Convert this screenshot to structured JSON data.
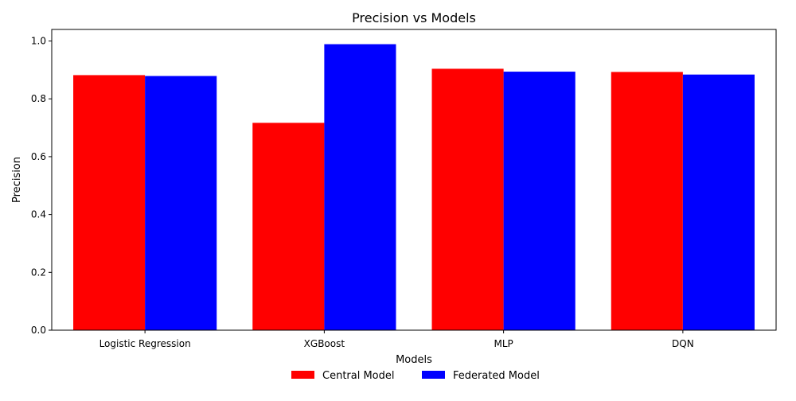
{
  "chart_data": {
    "type": "bar",
    "title": "Precision vs Models",
    "xlabel": "Models",
    "ylabel": "Precision",
    "categories": [
      "Logistic Regression",
      "XGBoost",
      "MLP",
      "DQN"
    ],
    "series": [
      {
        "name": "Central Model",
        "color": "#ff0000",
        "values": [
          0.882,
          0.717,
          0.904,
          0.893
        ]
      },
      {
        "name": "Federated Model",
        "color": "#0000ff",
        "values": [
          0.879,
          0.989,
          0.894,
          0.884
        ]
      }
    ],
    "ylim": [
      0,
      1.04
    ],
    "yticks": [
      0.0,
      0.2,
      0.4,
      0.6,
      0.8,
      1.0
    ],
    "ytick_labels": [
      "0.0",
      "0.2",
      "0.4",
      "0.6",
      "0.8",
      "1.0"
    ],
    "grid": false,
    "legend_position": "bottom-center"
  }
}
